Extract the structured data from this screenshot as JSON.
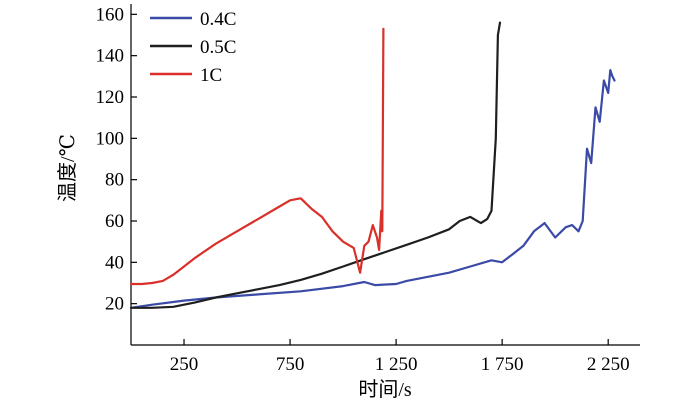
{
  "chart_data": {
    "type": "line",
    "title": "",
    "xlabel": "时间/s",
    "ylabel": "温度/℃",
    "xlim": [
      0,
      2400
    ],
    "ylim": [
      0,
      165
    ],
    "xticks": [
      250,
      750,
      1250,
      1750,
      2250
    ],
    "xtick_labels": [
      "250",
      "750",
      "1 250",
      "1 750",
      "2 250"
    ],
    "yticks": [
      20,
      40,
      60,
      80,
      100,
      120,
      140,
      160
    ],
    "ytick_labels": [
      "20",
      "40",
      "60",
      "80",
      "100",
      "120",
      "140",
      "160"
    ],
    "grid": false,
    "legend_position": "top-left",
    "series": [
      {
        "name": "0.4C",
        "color": "#3a4aa6",
        "x": [
          0,
          100,
          250,
          400,
          600,
          800,
          1000,
          1100,
          1150,
          1250,
          1300,
          1400,
          1500,
          1600,
          1700,
          1750,
          1800,
          1850,
          1900,
          1950,
          2000,
          2050,
          2080,
          2110,
          2130,
          2150,
          2170,
          2190,
          2210,
          2230,
          2250,
          2260,
          2270,
          2280
        ],
        "y": [
          18,
          19.5,
          21.5,
          23,
          24.5,
          26,
          28.5,
          30.5,
          29,
          29.5,
          31,
          33,
          35,
          38,
          41,
          40,
          44,
          48,
          55,
          59,
          52,
          57,
          58,
          55,
          60,
          95,
          88,
          115,
          108,
          128,
          122,
          133,
          130,
          128
        ]
      },
      {
        "name": "0.5C",
        "color": "#1f1f1f",
        "x": [
          0,
          100,
          200,
          300,
          400,
          500,
          600,
          700,
          800,
          900,
          1000,
          1100,
          1200,
          1300,
          1400,
          1500,
          1550,
          1600,
          1650,
          1680,
          1700,
          1720,
          1730,
          1740
        ],
        "y": [
          18,
          18,
          18.5,
          20.5,
          23,
          25,
          27,
          29,
          31.5,
          34.5,
          38,
          41.5,
          45,
          48.5,
          52,
          56,
          60,
          62,
          59,
          61,
          65,
          100,
          150,
          156
        ]
      },
      {
        "name": "1C",
        "color": "#d9302a",
        "x": [
          0,
          50,
          100,
          150,
          200,
          250,
          300,
          400,
          500,
          600,
          700,
          750,
          800,
          850,
          900,
          950,
          1000,
          1050,
          1080,
          1100,
          1120,
          1140,
          1160,
          1170,
          1180,
          1185,
          1190
        ],
        "y": [
          29.5,
          29.5,
          30,
          31,
          34,
          38,
          42,
          49,
          55,
          61,
          67,
          70,
          71,
          66,
          62,
          55,
          50,
          47,
          35,
          48,
          50,
          58,
          52,
          46,
          65,
          55,
          153
        ]
      }
    ]
  }
}
